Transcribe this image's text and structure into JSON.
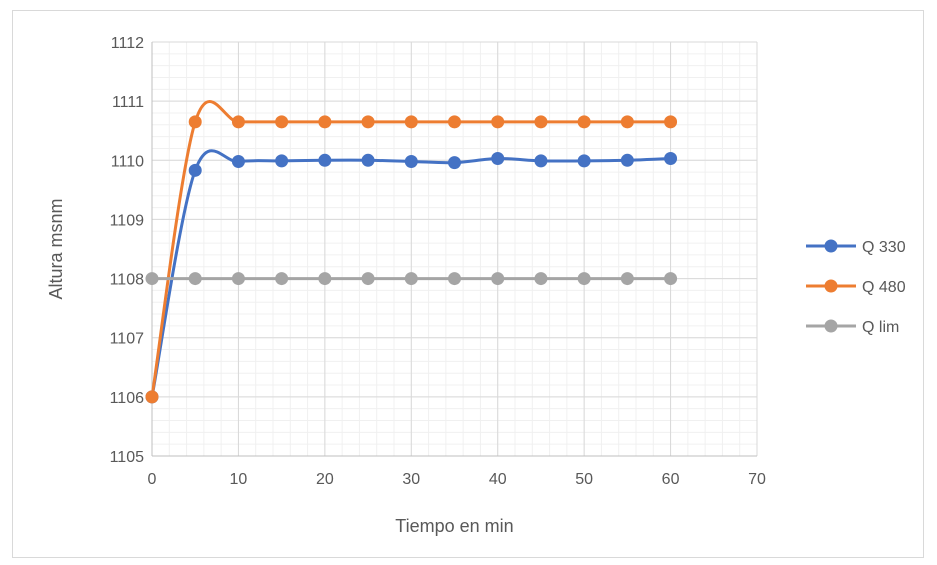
{
  "chart_data": {
    "type": "line",
    "title": "",
    "xlabel": "Tiempo en min",
    "ylabel": "Altura msnm",
    "xlim": [
      0,
      70
    ],
    "ylim": [
      1105,
      1112
    ],
    "x_ticks": [
      0,
      10,
      20,
      30,
      40,
      50,
      60,
      70
    ],
    "y_ticks": [
      1105,
      1106,
      1107,
      1108,
      1109,
      1110,
      1111,
      1112
    ],
    "grid": true,
    "minor_grid": true,
    "legend_position": "right",
    "smooth": true,
    "series": [
      {
        "name": "Q 330",
        "color": "#4472c4",
        "x": [
          0,
          5,
          10,
          15,
          20,
          25,
          30,
          35,
          40,
          45,
          50,
          55,
          60
        ],
        "y": [
          1106,
          1109.83,
          1109.98,
          1109.99,
          1110.0,
          1110.0,
          1109.98,
          1109.96,
          1110.03,
          1109.99,
          1109.99,
          1110.0,
          1110.03
        ]
      },
      {
        "name": "Q 480",
        "color": "#ed7d31",
        "x": [
          0,
          5,
          10,
          15,
          20,
          25,
          30,
          35,
          40,
          45,
          50,
          55,
          60
        ],
        "y": [
          1106,
          1110.65,
          1110.65,
          1110.65,
          1110.65,
          1110.65,
          1110.65,
          1110.65,
          1110.65,
          1110.65,
          1110.65,
          1110.65,
          1110.65
        ]
      },
      {
        "name": "Q lim",
        "color": "#a5a5a5",
        "x": [
          0,
          5,
          10,
          15,
          20,
          25,
          30,
          35,
          40,
          45,
          50,
          55,
          60
        ],
        "y": [
          1108,
          1108,
          1108,
          1108,
          1108,
          1108,
          1108,
          1108,
          1108,
          1108,
          1108,
          1108,
          1108
        ]
      }
    ]
  }
}
